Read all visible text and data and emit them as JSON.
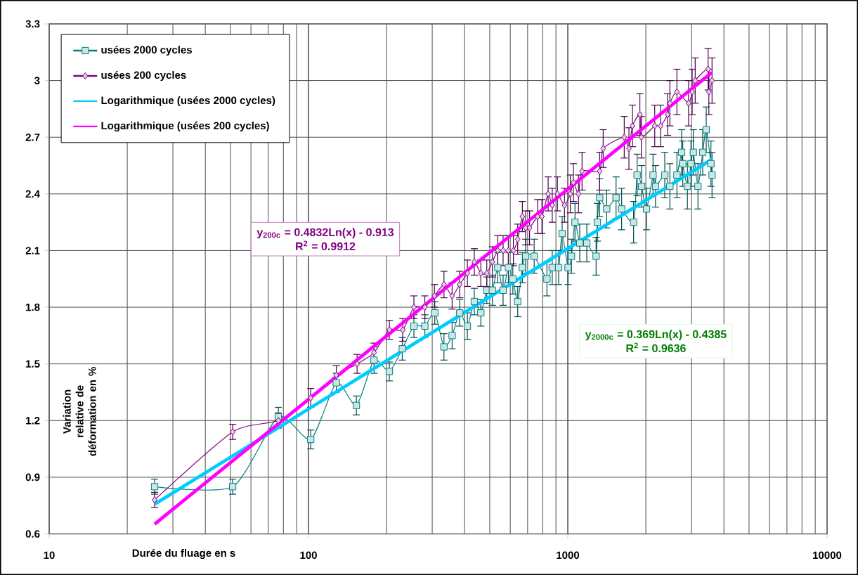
{
  "chart_data": {
    "type": "line",
    "xlabel": "Durée du fluage en s",
    "ylabel": "Variation relative de déformation en %",
    "log": "x",
    "xlim": [
      10,
      10000
    ],
    "xticks": [
      10,
      100,
      1000,
      10000
    ],
    "ylim": [
      0.6,
      3.3
    ],
    "yticks": [
      0.6,
      0.9,
      1.2,
      1.5,
      1.8,
      2.1,
      2.4,
      2.7,
      3,
      3.3
    ],
    "grid": true,
    "legend": "top left",
    "annotations": [
      "y$_{200c}$ = 0.4832Ln(x) - 0.913",
      "R$^{2}$ = 0.9912",
      "y$_{2000c}$ = 0.369Ln(x) - 0.4385",
      "R$^{2}$ = 0.9636"
    ],
    "series": [
      {
        "name": "usées 2000 cycles",
        "marker": "square",
        "color": "#008080",
        "x": [
          25.5,
          51,
          76.5,
          102,
          128,
          153,
          179,
          205,
          230,
          255,
          281,
          307,
          333,
          358,
          383,
          410,
          436,
          462,
          487,
          512,
          537,
          563,
          590,
          614,
          641,
          668,
          688,
          742,
          831,
          871,
          922,
          951,
          1002,
          1033,
          1066,
          1112,
          1184,
          1286,
          1300,
          1327,
          1413,
          1535,
          1613,
          1794,
          1851,
          1927,
          2012,
          2132,
          2180,
          2366,
          2476,
          2636,
          2748,
          2776,
          2893,
          2986,
          3050,
          3177,
          3314,
          3419,
          3565,
          3600
        ],
        "values": [
          0.85,
          0.85,
          1.22,
          1.1,
          1.4,
          1.28,
          1.52,
          1.46,
          1.58,
          1.7,
          1.7,
          1.77,
          1.59,
          1.65,
          1.77,
          1.7,
          1.83,
          1.77,
          1.89,
          1.89,
          2.01,
          1.89,
          2.01,
          1.95,
          1.83,
          2.01,
          2.07,
          2.07,
          1.95,
          2.01,
          2.01,
          2.19,
          2.01,
          2.07,
          2.25,
          2.14,
          2.14,
          2.07,
          2.25,
          2.38,
          2.32,
          2.38,
          2.32,
          2.25,
          2.5,
          2.44,
          2.32,
          2.5,
          2.44,
          2.5,
          2.44,
          2.5,
          2.62,
          2.56,
          2.44,
          2.56,
          2.62,
          2.44,
          2.62,
          2.74,
          2.56,
          2.5
        ],
        "errors": [
          0.04,
          0.04,
          0.05,
          0.05,
          0.05,
          0.05,
          0.07,
          0.05,
          0.06,
          0.06,
          0.06,
          0.06,
          0.07,
          0.07,
          0.07,
          0.07,
          0.07,
          0.07,
          0.07,
          0.08,
          0.08,
          0.08,
          0.08,
          0.08,
          0.08,
          0.08,
          0.09,
          0.09,
          0.09,
          0.09,
          0.09,
          0.09,
          0.09,
          0.09,
          0.1,
          0.1,
          0.1,
          0.1,
          0.1,
          0.1,
          0.1,
          0.11,
          0.11,
          0.11,
          0.11,
          0.11,
          0.11,
          0.11,
          0.11,
          0.12,
          0.12,
          0.12,
          0.12,
          0.12,
          0.12,
          0.12,
          0.12,
          0.12,
          0.12,
          0.12,
          0.12,
          0.12
        ]
      },
      {
        "name": "usées 200 cycles",
        "marker": "diamond",
        "color": "#800080",
        "x": [
          25.5,
          51,
          76.5,
          102,
          128,
          154,
          179,
          205,
          231,
          255,
          281,
          306,
          333,
          358,
          383,
          410,
          436,
          462,
          487,
          512,
          537,
          563,
          590,
          617,
          641,
          668,
          688,
          712,
          765,
          795,
          840,
          871,
          912,
          971,
          1023,
          1051,
          1100,
          1135,
          1327,
          1369,
          1651,
          1721,
          1776,
          1897,
          1922,
          2164,
          2279,
          2426,
          2476,
          2636,
          2924,
          3018,
          3100,
          3476,
          3500,
          3600
        ],
        "values": [
          0.78,
          1.14,
          1.2,
          1.32,
          1.44,
          1.5,
          1.56,
          1.68,
          1.68,
          1.8,
          1.8,
          1.86,
          1.92,
          1.86,
          1.92,
          1.98,
          2.04,
          1.98,
          1.98,
          2.04,
          2.1,
          2.1,
          2.1,
          2.1,
          2.16,
          2.28,
          2.22,
          2.22,
          2.28,
          2.28,
          2.4,
          2.34,
          2.4,
          2.34,
          2.4,
          2.46,
          2.4,
          2.52,
          2.52,
          2.64,
          2.7,
          2.64,
          2.76,
          2.82,
          2.7,
          2.76,
          2.76,
          2.82,
          2.88,
          2.94,
          2.88,
          2.94,
          3.0,
          3.06,
          2.94,
          3.0
        ],
        "errors": [
          0.04,
          0.04,
          0.04,
          0.05,
          0.05,
          0.05,
          0.05,
          0.05,
          0.06,
          0.06,
          0.06,
          0.06,
          0.07,
          0.07,
          0.07,
          0.07,
          0.07,
          0.07,
          0.07,
          0.08,
          0.08,
          0.08,
          0.08,
          0.08,
          0.08,
          0.08,
          0.09,
          0.09,
          0.09,
          0.09,
          0.09,
          0.09,
          0.09,
          0.09,
          0.1,
          0.1,
          0.1,
          0.1,
          0.1,
          0.1,
          0.11,
          0.11,
          0.11,
          0.11,
          0.11,
          0.11,
          0.11,
          0.11,
          0.12,
          0.12,
          0.12,
          0.12,
          0.12,
          0.11,
          0.12,
          0.12
        ]
      },
      {
        "name": "Logarithmique (usées 2000 cycles)",
        "marker": "none",
        "color": "#00ccff",
        "x": [
          25.5,
          3600
        ],
        "values": [
          0.757,
          2.583
        ]
      },
      {
        "name": "Logarithmique (usées 200 cycles)",
        "marker": "none",
        "color": "#ff00ff",
        "x": [
          25.5,
          3600
        ],
        "values": [
          0.652,
          3.044
        ]
      }
    ]
  }
}
